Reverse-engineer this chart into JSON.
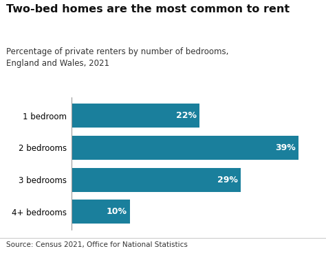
{
  "title": "Two-bed homes are the most common to rent",
  "subtitle": "Percentage of private renters by number of bedrooms,\nEngland and Wales, 2021",
  "categories": [
    "1 bedroom",
    "2 bedrooms",
    "3 bedrooms",
    "4+ bedrooms"
  ],
  "values": [
    22,
    39,
    29,
    10
  ],
  "labels": [
    "22%",
    "39%",
    "29%",
    "10%"
  ],
  "bar_color": "#1a7f9c",
  "label_color": "#ffffff",
  "background_color": "#ffffff",
  "source_text": "Source: Census 2021, Office for National Statistics",
  "title_fontsize": 11.5,
  "subtitle_fontsize": 8.5,
  "label_fontsize": 9,
  "category_fontsize": 8.5,
  "source_fontsize": 7.5,
  "xlim": [
    0,
    42
  ],
  "footer_line_color": "#cccccc",
  "spine_color": "#999999"
}
